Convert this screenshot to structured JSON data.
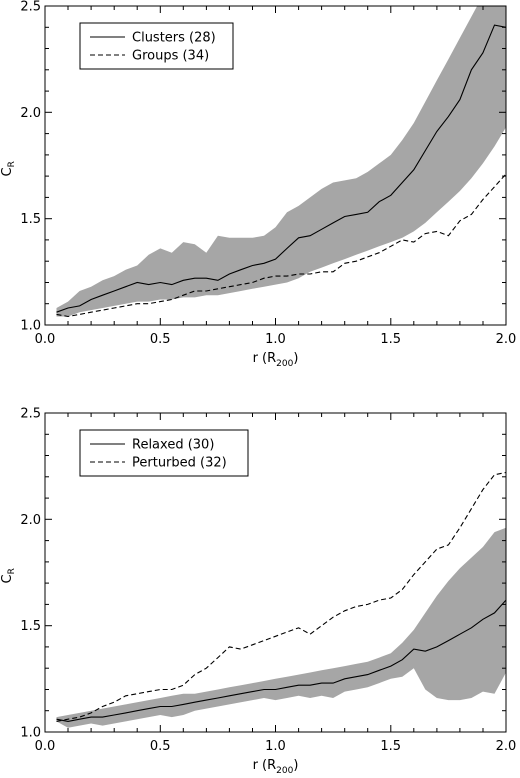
{
  "chart_data": [
    {
      "type": "line",
      "title": "",
      "xlabel": "r",
      "xlabel_sub": "200",
      "xlabel_unit_prefix": "(R",
      "xlabel_unit_suffix": ")",
      "ylabel": "C",
      "ylabel_sub": "R",
      "xlim": [
        0.0,
        2.0
      ],
      "ylim": [
        1.0,
        2.5
      ],
      "xticks": [
        0.0,
        0.5,
        1.0,
        1.5,
        2.0
      ],
      "xtick_labels": [
        "0.0",
        "0.5",
        "1.0",
        "1.5",
        "2.0"
      ],
      "yticks": [
        1.0,
        1.5,
        2.0,
        2.5
      ],
      "ytick_labels": [
        "1.0",
        "1.5",
        "2.0",
        "2.5"
      ],
      "legend_position": "top-left",
      "band": {
        "x": [
          0.05,
          0.1,
          0.15,
          0.2,
          0.25,
          0.3,
          0.35,
          0.4,
          0.45,
          0.5,
          0.55,
          0.6,
          0.65,
          0.7,
          0.75,
          0.8,
          0.85,
          0.9,
          0.95,
          1.0,
          1.05,
          1.1,
          1.15,
          1.2,
          1.25,
          1.3,
          1.35,
          1.4,
          1.45,
          1.5,
          1.55,
          1.6,
          1.65,
          1.7,
          1.75,
          1.8,
          1.85,
          1.9,
          1.95,
          2.0
        ],
        "upper": [
          1.08,
          1.11,
          1.16,
          1.18,
          1.21,
          1.23,
          1.26,
          1.28,
          1.33,
          1.36,
          1.34,
          1.39,
          1.38,
          1.34,
          1.42,
          1.41,
          1.41,
          1.41,
          1.42,
          1.46,
          1.53,
          1.56,
          1.6,
          1.64,
          1.67,
          1.68,
          1.69,
          1.72,
          1.76,
          1.8,
          1.87,
          1.95,
          2.05,
          2.15,
          2.25,
          2.35,
          2.45,
          2.55,
          2.6,
          2.6
        ],
        "lower": [
          1.04,
          1.04,
          1.06,
          1.07,
          1.08,
          1.09,
          1.1,
          1.11,
          1.11,
          1.12,
          1.12,
          1.13,
          1.13,
          1.14,
          1.14,
          1.15,
          1.16,
          1.17,
          1.18,
          1.19,
          1.2,
          1.22,
          1.25,
          1.27,
          1.29,
          1.31,
          1.33,
          1.35,
          1.37,
          1.39,
          1.41,
          1.44,
          1.48,
          1.53,
          1.58,
          1.63,
          1.69,
          1.76,
          1.84,
          1.93
        ]
      },
      "series": [
        {
          "name": "Clusters (28)",
          "style": "solid",
          "x": [
            0.05,
            0.1,
            0.15,
            0.2,
            0.25,
            0.3,
            0.35,
            0.4,
            0.45,
            0.5,
            0.55,
            0.6,
            0.65,
            0.7,
            0.75,
            0.8,
            0.85,
            0.9,
            0.95,
            1.0,
            1.05,
            1.1,
            1.15,
            1.2,
            1.25,
            1.3,
            1.35,
            1.4,
            1.45,
            1.5,
            1.55,
            1.6,
            1.65,
            1.7,
            1.75,
            1.8,
            1.85,
            1.9,
            1.95,
            2.0
          ],
          "y": [
            1.06,
            1.08,
            1.09,
            1.12,
            1.14,
            1.16,
            1.18,
            1.2,
            1.19,
            1.2,
            1.19,
            1.21,
            1.22,
            1.22,
            1.21,
            1.24,
            1.26,
            1.28,
            1.29,
            1.31,
            1.36,
            1.41,
            1.42,
            1.45,
            1.48,
            1.51,
            1.52,
            1.53,
            1.58,
            1.61,
            1.67,
            1.73,
            1.82,
            1.91,
            1.98,
            2.06,
            2.2,
            2.28,
            2.41,
            2.4
          ]
        },
        {
          "name": "Groups (34)",
          "style": "dashed",
          "x": [
            0.05,
            0.1,
            0.15,
            0.2,
            0.25,
            0.3,
            0.35,
            0.4,
            0.45,
            0.5,
            0.55,
            0.6,
            0.65,
            0.7,
            0.75,
            0.8,
            0.85,
            0.9,
            0.95,
            1.0,
            1.05,
            1.1,
            1.15,
            1.2,
            1.25,
            1.3,
            1.35,
            1.4,
            1.45,
            1.5,
            1.55,
            1.6,
            1.65,
            1.7,
            1.75,
            1.8,
            1.85,
            1.9,
            1.95,
            2.0
          ],
          "y": [
            1.05,
            1.04,
            1.05,
            1.06,
            1.07,
            1.08,
            1.09,
            1.1,
            1.1,
            1.11,
            1.12,
            1.14,
            1.16,
            1.16,
            1.17,
            1.18,
            1.19,
            1.2,
            1.22,
            1.23,
            1.23,
            1.24,
            1.24,
            1.25,
            1.25,
            1.29,
            1.3,
            1.32,
            1.34,
            1.37,
            1.4,
            1.39,
            1.43,
            1.44,
            1.42,
            1.49,
            1.52,
            1.59,
            1.65,
            1.71
          ]
        }
      ]
    },
    {
      "type": "line",
      "title": "",
      "xlabel": "r",
      "xlabel_sub": "200",
      "xlabel_unit_prefix": "(R",
      "xlabel_unit_suffix": ")",
      "ylabel": "C",
      "ylabel_sub": "R",
      "xlim": [
        0.0,
        2.0
      ],
      "ylim": [
        1.0,
        2.5
      ],
      "xticks": [
        0.0,
        0.5,
        1.0,
        1.5,
        2.0
      ],
      "xtick_labels": [
        "0.0",
        "0.5",
        "1.0",
        "1.5",
        "2.0"
      ],
      "yticks": [
        1.0,
        1.5,
        2.0,
        2.5
      ],
      "ytick_labels": [
        "1.0",
        "1.5",
        "2.0",
        "2.5"
      ],
      "legend_position": "top-left",
      "band": {
        "x": [
          0.05,
          0.1,
          0.15,
          0.2,
          0.25,
          0.3,
          0.35,
          0.4,
          0.45,
          0.5,
          0.55,
          0.6,
          0.65,
          0.7,
          0.75,
          0.8,
          0.85,
          0.9,
          0.95,
          1.0,
          1.05,
          1.1,
          1.15,
          1.2,
          1.25,
          1.3,
          1.35,
          1.4,
          1.45,
          1.5,
          1.55,
          1.6,
          1.65,
          1.7,
          1.75,
          1.8,
          1.85,
          1.9,
          1.95,
          2.0
        ],
        "upper": [
          1.07,
          1.08,
          1.09,
          1.1,
          1.11,
          1.12,
          1.13,
          1.14,
          1.15,
          1.16,
          1.17,
          1.18,
          1.18,
          1.19,
          1.2,
          1.21,
          1.22,
          1.23,
          1.24,
          1.25,
          1.26,
          1.27,
          1.28,
          1.29,
          1.3,
          1.31,
          1.32,
          1.33,
          1.35,
          1.37,
          1.42,
          1.48,
          1.56,
          1.64,
          1.71,
          1.77,
          1.82,
          1.87,
          1.94,
          1.96
        ]
      },
      "series": [
        {
          "name": "Relaxed (30)",
          "style": "solid",
          "x": [
            0.05,
            0.1,
            0.15,
            0.2,
            0.25,
            0.3,
            0.35,
            0.4,
            0.45,
            0.5,
            0.55,
            0.6,
            0.65,
            0.7,
            0.75,
            0.8,
            0.85,
            0.9,
            0.95,
            1.0,
            1.05,
            1.1,
            1.15,
            1.2,
            1.25,
            1.3,
            1.35,
            1.4,
            1.45,
            1.5,
            1.55,
            1.6,
            1.65,
            1.7,
            1.75,
            1.8,
            1.85,
            1.9,
            1.95,
            2.0
          ],
          "y": [
            1.06,
            1.05,
            1.06,
            1.07,
            1.07,
            1.08,
            1.09,
            1.1,
            1.11,
            1.12,
            1.12,
            1.13,
            1.14,
            1.15,
            1.16,
            1.17,
            1.18,
            1.19,
            1.2,
            1.2,
            1.21,
            1.22,
            1.22,
            1.23,
            1.23,
            1.25,
            1.26,
            1.27,
            1.29,
            1.31,
            1.34,
            1.39,
            1.38,
            1.4,
            1.43,
            1.46,
            1.49,
            1.53,
            1.56,
            1.62
          ]
        },
        {
          "name": "Perturbed (32)",
          "style": "dashed",
          "x": [
            0.05,
            0.1,
            0.15,
            0.2,
            0.25,
            0.3,
            0.35,
            0.4,
            0.45,
            0.5,
            0.55,
            0.6,
            0.65,
            0.7,
            0.75,
            0.8,
            0.85,
            0.9,
            0.95,
            1.0,
            1.05,
            1.1,
            1.15,
            1.2,
            1.25,
            1.3,
            1.35,
            1.4,
            1.45,
            1.5,
            1.55,
            1.6,
            1.65,
            1.7,
            1.75,
            1.8,
            1.85,
            1.9,
            1.95,
            2.0
          ],
          "y": [
            1.05,
            1.06,
            1.07,
            1.09,
            1.12,
            1.14,
            1.17,
            1.18,
            1.19,
            1.2,
            1.2,
            1.22,
            1.27,
            1.3,
            1.35,
            1.4,
            1.39,
            1.41,
            1.43,
            1.45,
            1.47,
            1.49,
            1.46,
            1.5,
            1.54,
            1.57,
            1.59,
            1.6,
            1.62,
            1.63,
            1.67,
            1.74,
            1.8,
            1.86,
            1.88,
            1.96,
            2.05,
            2.14,
            2.21,
            2.22
          ]
        }
      ]
    }
  ]
}
